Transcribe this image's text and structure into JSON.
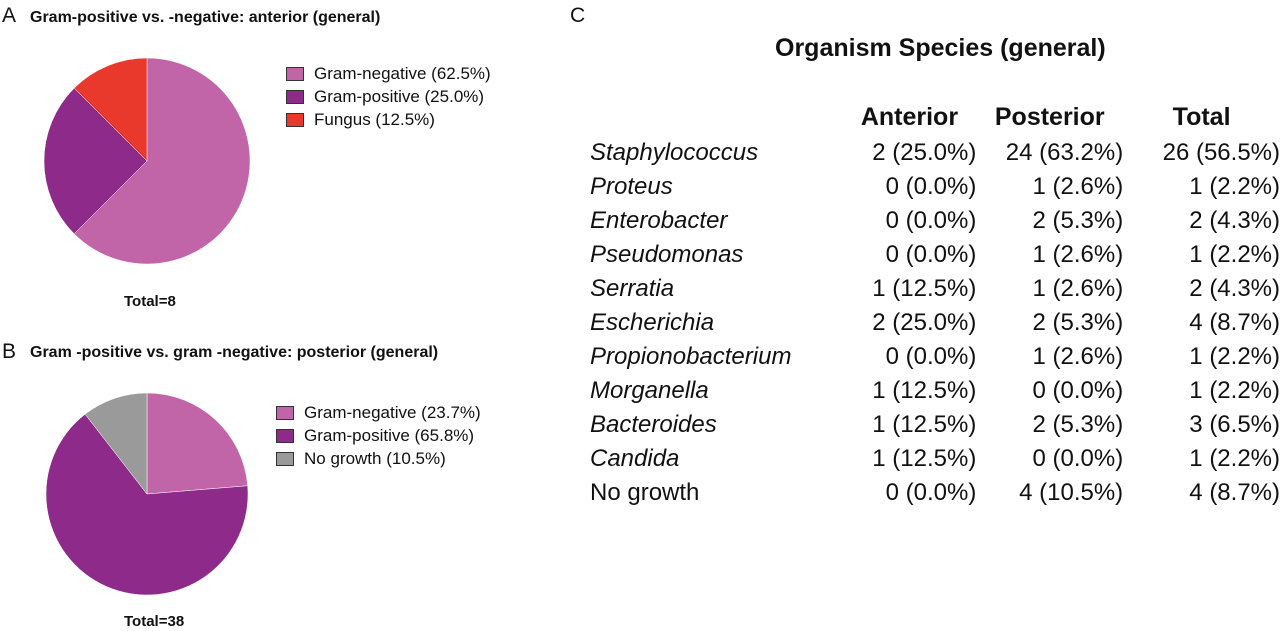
{
  "panels": {
    "a": {
      "letter": "A",
      "title": "Gram-positive vs. -negative: anterior (general)",
      "total": "Total=8"
    },
    "b": {
      "letter": "B",
      "title": "Gram -positive vs. gram -negative: posterior (general)",
      "total": "Total=38"
    },
    "c": {
      "letter": "C"
    }
  },
  "chart_data": [
    {
      "type": "pie",
      "title": "Gram-positive vs. -negative: anterior (general)",
      "slices": [
        {
          "label": "Gram-negative (62.5%)",
          "value": 62.5,
          "color": "#c264a8"
        },
        {
          "label": "Gram-positive (25.0%)",
          "value": 25.0,
          "color": "#8e2a8a"
        },
        {
          "label": "Fungus (12.5%)",
          "value": 12.5,
          "color": "#e8392c"
        }
      ],
      "legend": "right",
      "annotation": "Total=8"
    },
    {
      "type": "pie",
      "title": "Gram -positive vs. gram -negative: posterior (general)",
      "slices": [
        {
          "label": "Gram-negative (23.7%)",
          "value": 23.7,
          "color": "#c264a8"
        },
        {
          "label": "Gram-positive (65.8%)",
          "value": 65.8,
          "color": "#8e2a8a"
        },
        {
          "label": "No growth (10.5%)",
          "value": 10.5,
          "color": "#9a9a9a"
        }
      ],
      "legend": "right",
      "annotation": "Total=38"
    },
    {
      "type": "table",
      "title": "Organism Species (general)",
      "columns": [
        "",
        "Anterior",
        "Posterior",
        "Total"
      ],
      "rows": [
        {
          "species": "Staphylococcus",
          "italic": true,
          "anterior": "2 (25.0%)",
          "posterior": "24 (63.2%)",
          "total": "26 (56.5%)"
        },
        {
          "species": "Proteus",
          "italic": true,
          "anterior": "0 (0.0%)",
          "posterior": "1 (2.6%)",
          "total": "1 (2.2%)"
        },
        {
          "species": "Enterobacter",
          "italic": true,
          "anterior": "0 (0.0%)",
          "posterior": "2 (5.3%)",
          "total": "2 (4.3%)"
        },
        {
          "species": "Pseudomonas",
          "italic": true,
          "anterior": "0 (0.0%)",
          "posterior": "1 (2.6%)",
          "total": "1 (2.2%)"
        },
        {
          "species": "Serratia",
          "italic": true,
          "anterior": "1 (12.5%)",
          "posterior": "1 (2.6%)",
          "total": "2 (4.3%)"
        },
        {
          "species": "Escherichia",
          "italic": true,
          "anterior": "2 (25.0%)",
          "posterior": "2 (5.3%)",
          "total": "4 (8.7%)"
        },
        {
          "species": "Propionobacterium",
          "italic": true,
          "anterior": "0 (0.0%)",
          "posterior": "1 (2.6%)",
          "total": "1 (2.2%)"
        },
        {
          "species": "Morganella",
          "italic": true,
          "anterior": "1 (12.5%)",
          "posterior": "0 (0.0%)",
          "total": "1 (2.2%)"
        },
        {
          "species": "Bacteroides",
          "italic": true,
          "anterior": "1 (12.5%)",
          "posterior": "2 (5.3%)",
          "total": "3 (6.5%)"
        },
        {
          "species": "Candida",
          "italic": true,
          "anterior": "1 (12.5%)",
          "posterior": "0 (0.0%)",
          "total": "1 (2.2%)"
        },
        {
          "species": "No growth",
          "italic": false,
          "anterior": "0 (0.0%)",
          "posterior": "4 (10.5%)",
          "total": "4 (8.7%)"
        }
      ]
    }
  ]
}
